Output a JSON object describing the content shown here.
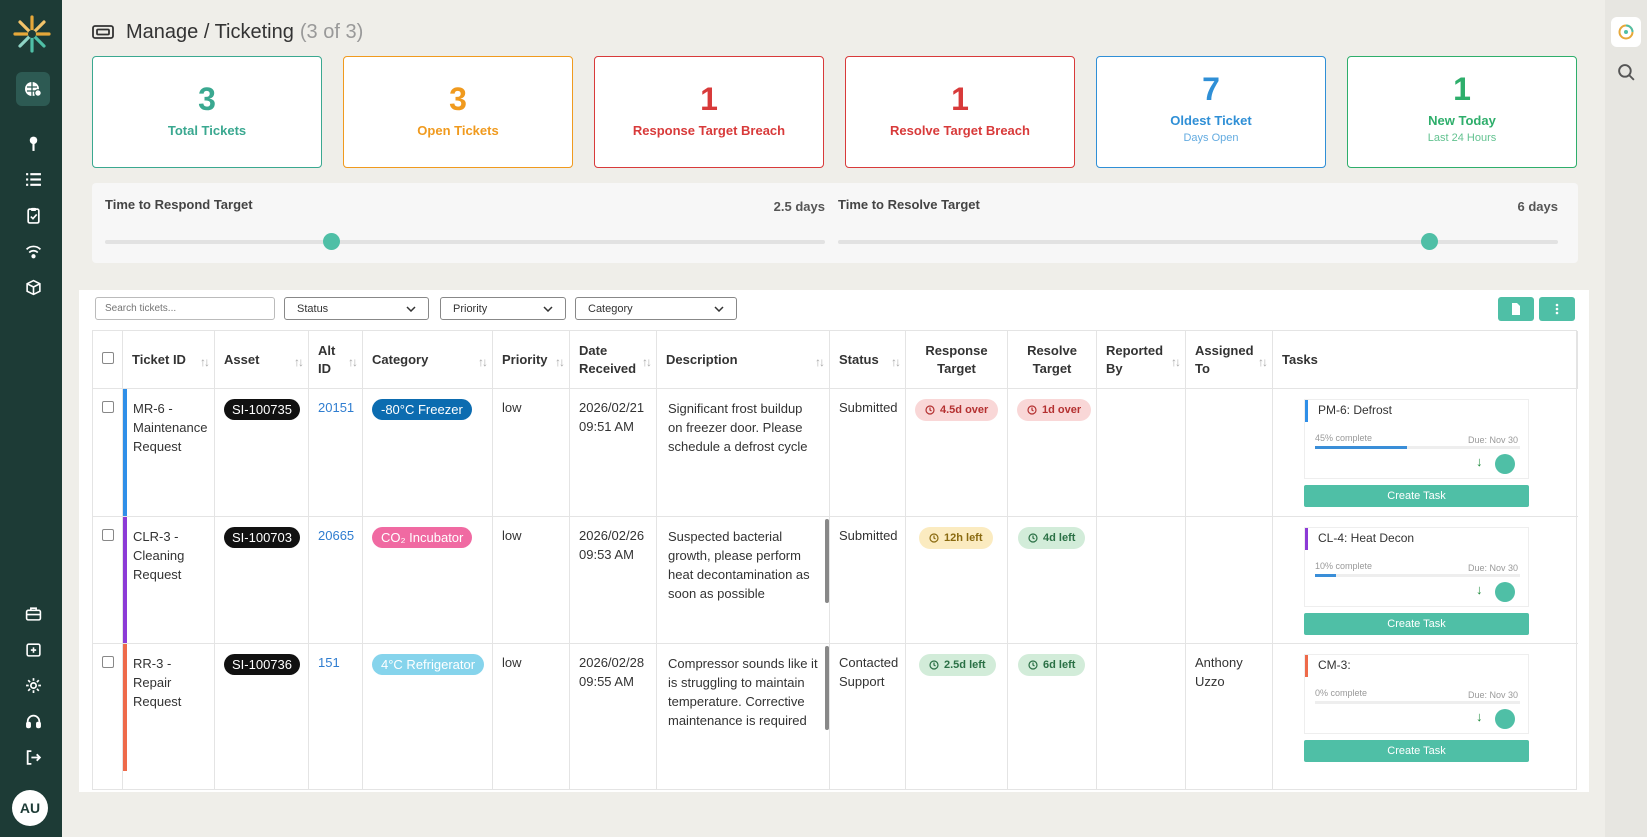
{
  "header": {
    "title": "Manage / Ticketing",
    "count": "(3 of 3)"
  },
  "cards": [
    {
      "number": "3",
      "label": "Total Tickets",
      "sub": "",
      "color": "#3aa890"
    },
    {
      "number": "3",
      "label": "Open Tickets",
      "sub": "",
      "color": "#f09a1e"
    },
    {
      "number": "1",
      "label": "Response Target Breach",
      "sub": "",
      "color": "#d83a3a"
    },
    {
      "number": "1",
      "label": "Resolve Target Breach",
      "sub": "",
      "color": "#d83a3a"
    },
    {
      "number": "7",
      "label": "Oldest Ticket",
      "sub": "Days Open",
      "color": "#2f8fd6"
    },
    {
      "number": "1",
      "label": "New Today",
      "sub": "Last 24 Hours",
      "color": "#2eae6b"
    }
  ],
  "targets": {
    "respond_label": "Time to Respond Target",
    "respond_value": "2.5 days",
    "respond_level": 0.31,
    "resolve_label": "Time to Resolve Target",
    "resolve_value": "6 days",
    "resolve_level": 0.83
  },
  "toolbar": {
    "search_placeholder": "Search tickets...",
    "status_label": "Status",
    "priority_label": "Priority",
    "category_label": "Category",
    "export_icon": "document-icon",
    "more_icon": "more-vertical-icon"
  },
  "columns": [
    "Ticket ID",
    "Asset",
    "Alt ID",
    "Category",
    "Priority",
    "Date Received",
    "Description",
    "Status",
    "Response Target",
    "Resolve Target",
    "Reported By",
    "Assigned To",
    "Tasks"
  ],
  "rows": [
    {
      "ticket_id": "MR-6 - Maintenance Request",
      "accent": "#2f8fe8",
      "asset": "SI-100735",
      "alt_id": "20151",
      "category": "-80°C Freezer",
      "category_color": "#0c6cb0",
      "priority": "low",
      "date": "2026/02/21 09:51 AM",
      "description": "Significant frost buildup on freezer door. Please schedule a defrost cycle",
      "status": "Submitted",
      "response": "4.5d over",
      "response_style": "red",
      "resolve": "1d over",
      "resolve_style": "red",
      "reported_by": "",
      "assigned_to": "",
      "task": {
        "name": "PM-6: Defrost",
        "complete": "45% complete",
        "due": "Due: Nov 30",
        "progress": 0.45,
        "color": "#2f8fe8"
      },
      "create": "Create Task"
    },
    {
      "ticket_id": "CLR-3 - Cleaning Request",
      "accent": "#8c3ad6",
      "asset": "SI-100703",
      "alt_id": "20665",
      "category": "CO₂ Incubator",
      "category_color": "#f06aa2",
      "priority": "low",
      "date": "2026/02/26 09:53 AM",
      "description": "Suspected bacterial growth, please perform heat decontamination as soon as possible",
      "status": "Submitted",
      "response": "12h left",
      "response_style": "yellow",
      "resolve": "4d left",
      "resolve_style": "green",
      "reported_by": "",
      "assigned_to": "",
      "task": {
        "name": "CL-4: Heat Decon",
        "complete": "10% complete",
        "due": "Due: Nov 30",
        "progress": 0.1,
        "color": "#8c3ad6"
      },
      "create": "Create Task"
    },
    {
      "ticket_id": "RR-3 - Repair Request",
      "accent": "#ee6a4a",
      "asset": "SI-100736",
      "alt_id": "151",
      "category": "4°C Refrigerator",
      "category_color": "#86d4ec",
      "priority": "low",
      "date": "2026/02/28 09:55 AM",
      "description": "Compressor sounds like it is struggling to maintain temperature. Corrective maintenance is required",
      "status": "Contacted Support",
      "response": "2.5d left",
      "response_style": "green",
      "resolve": "6d left",
      "resolve_style": "green",
      "reported_by": "",
      "assigned_to": "Anthony Uzzo",
      "task": {
        "name": "CM-3:",
        "complete": "0% complete",
        "due": "Due: Nov 30",
        "progress": 0,
        "color": "#ee6a4a"
      },
      "create": "Create Task"
    }
  ],
  "user": {
    "initials": "AU"
  }
}
